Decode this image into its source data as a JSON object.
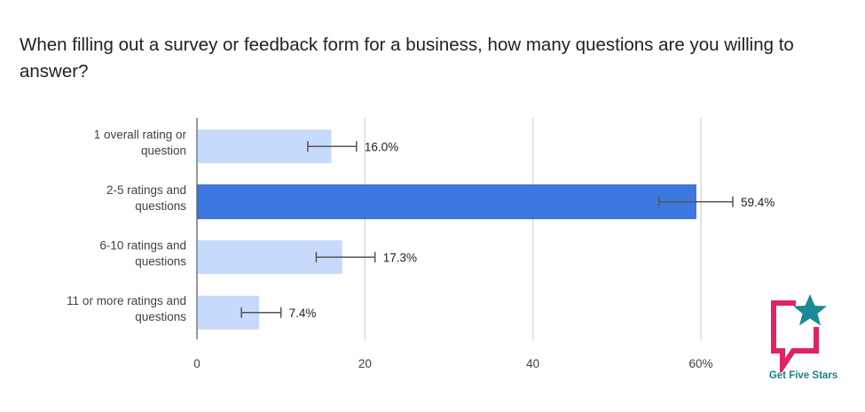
{
  "chart_data": {
    "type": "bar",
    "orientation": "horizontal",
    "title": "When filling out a survey or feedback form for a business, how many questions are you willing to answer?",
    "categories": [
      [
        "1 overall rating or",
        "question"
      ],
      [
        "2-5 ratings and",
        "questions"
      ],
      [
        "6-10 ratings and",
        "questions"
      ],
      [
        "11 or more ratings and",
        "questions"
      ]
    ],
    "values": [
      16.0,
      59.4,
      17.3,
      7.4
    ],
    "value_labels": [
      "16.0%",
      "59.4%",
      "17.3%",
      "7.4%"
    ],
    "error_bars": [
      [
        13.2,
        19.0
      ],
      [
        55.0,
        63.8
      ],
      [
        14.2,
        21.2
      ],
      [
        5.3,
        10.0
      ]
    ],
    "highlighted_index": 1,
    "xlim": [
      0,
      60
    ],
    "xticks": [
      0,
      20,
      40,
      60
    ],
    "xtick_labels": [
      "0",
      "20",
      "40",
      "60%"
    ],
    "xlabel": "",
    "ylabel": "",
    "grid": true,
    "colors": {
      "bar": "#c6dafc",
      "bar_highlight": "#3c78e0",
      "bar_highlight_border": "#2a5fc0",
      "error_bar": "#555555",
      "grid": "#d9d9d9",
      "axis": "#757575"
    }
  },
  "logo": {
    "text": "Get Five Stars",
    "icon": "speech-bubble-star-icon",
    "colors": {
      "bubble": "#e0245e",
      "star": "#1a8a98",
      "text": "#1a7f8e"
    }
  }
}
